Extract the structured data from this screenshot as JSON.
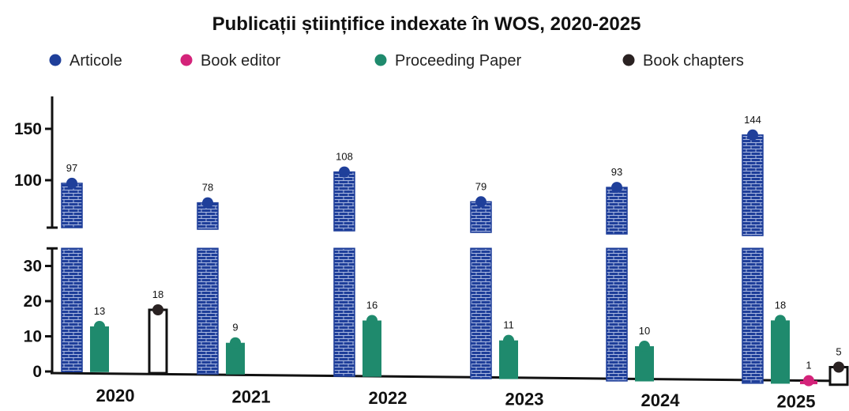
{
  "chart_data": {
    "type": "bar",
    "title": "Publicații științifice indexate în WOS, 2020-2025",
    "categories": [
      "2020",
      "2021",
      "2022",
      "2023",
      "2024",
      "2025"
    ],
    "series": [
      {
        "name": "Articole",
        "color": "#1f3f9a",
        "pattern": "brick",
        "values": [
          97,
          78,
          108,
          79,
          93,
          144
        ]
      },
      {
        "name": "Book editor",
        "color": "#d4237a",
        "values": [
          null,
          null,
          null,
          null,
          null,
          1
        ]
      },
      {
        "name": "Proceeding Paper",
        "color": "#1f8a6d",
        "values": [
          13,
          9,
          16,
          11,
          10,
          18
        ]
      },
      {
        "name": "Book chapters",
        "color": "#2a2222",
        "values": [
          18,
          null,
          null,
          null,
          null,
          5
        ]
      }
    ],
    "y_axis": {
      "broken": true,
      "lower_segment": [
        0,
        35
      ],
      "upper_segment": [
        35,
        180
      ],
      "ticks": [
        0,
        10,
        20,
        30,
        100,
        150
      ]
    },
    "xlabel": "",
    "ylabel": "",
    "legend": "top",
    "grid": false
  }
}
